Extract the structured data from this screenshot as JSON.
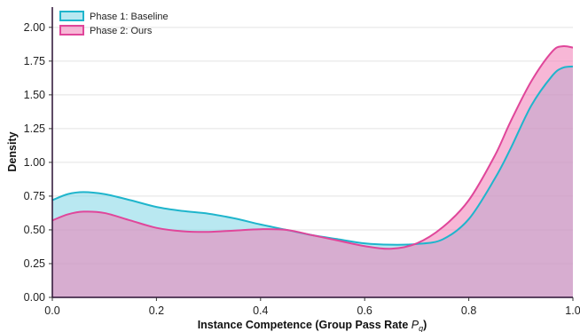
{
  "chart_data": {
    "type": "area",
    "xlabel_prefix": "Instance Competence (Group Pass Rate ",
    "xlabel_var": "P",
    "xlabel_sub": "q",
    "xlabel_suffix": ")",
    "ylabel": "Density",
    "xlim": [
      0.0,
      1.0
    ],
    "ylim": [
      0.0,
      2.15
    ],
    "x_ticks": [
      0.0,
      0.2,
      0.4,
      0.6,
      0.8,
      1.0
    ],
    "x_tick_labels": [
      "0.0",
      "0.2",
      "0.4",
      "0.6",
      "0.8",
      "1.0"
    ],
    "y_ticks": [
      0.0,
      0.25,
      0.5,
      0.75,
      1.0,
      1.25,
      1.5,
      1.75,
      2.0
    ],
    "y_tick_labels": [
      "0.00",
      "0.25",
      "0.50",
      "0.75",
      "1.00",
      "1.25",
      "1.50",
      "1.75",
      "2.00"
    ],
    "grid": "horizontal",
    "legend_position": "top-left",
    "series": [
      {
        "name": "Phase 1: Baseline",
        "stroke": "#1fb5cc",
        "fill": "#7fd6e6",
        "x": [
          0.0,
          0.03,
          0.06,
          0.1,
          0.15,
          0.2,
          0.25,
          0.3,
          0.35,
          0.4,
          0.45,
          0.5,
          0.55,
          0.6,
          0.65,
          0.7,
          0.75,
          0.8,
          0.85,
          0.88,
          0.92,
          0.96,
          0.98,
          1.0
        ],
        "values": [
          0.72,
          0.765,
          0.78,
          0.765,
          0.72,
          0.67,
          0.64,
          0.62,
          0.585,
          0.54,
          0.5,
          0.46,
          0.43,
          0.4,
          0.39,
          0.395,
          0.43,
          0.58,
          0.88,
          1.1,
          1.42,
          1.64,
          1.7,
          1.71
        ]
      },
      {
        "name": "Phase 2: Ours",
        "stroke": "#e0469a",
        "fill": "#f07bb5",
        "x": [
          0.0,
          0.03,
          0.06,
          0.1,
          0.15,
          0.2,
          0.25,
          0.3,
          0.35,
          0.4,
          0.45,
          0.5,
          0.55,
          0.6,
          0.65,
          0.7,
          0.75,
          0.8,
          0.85,
          0.88,
          0.92,
          0.96,
          0.98,
          1.0
        ],
        "values": [
          0.57,
          0.615,
          0.635,
          0.625,
          0.57,
          0.515,
          0.49,
          0.485,
          0.495,
          0.505,
          0.5,
          0.46,
          0.42,
          0.38,
          0.36,
          0.4,
          0.52,
          0.72,
          1.05,
          1.3,
          1.6,
          1.82,
          1.86,
          1.85
        ]
      }
    ],
    "overlap_color": "#c7a7cf",
    "axis_color": "#2a1033"
  }
}
